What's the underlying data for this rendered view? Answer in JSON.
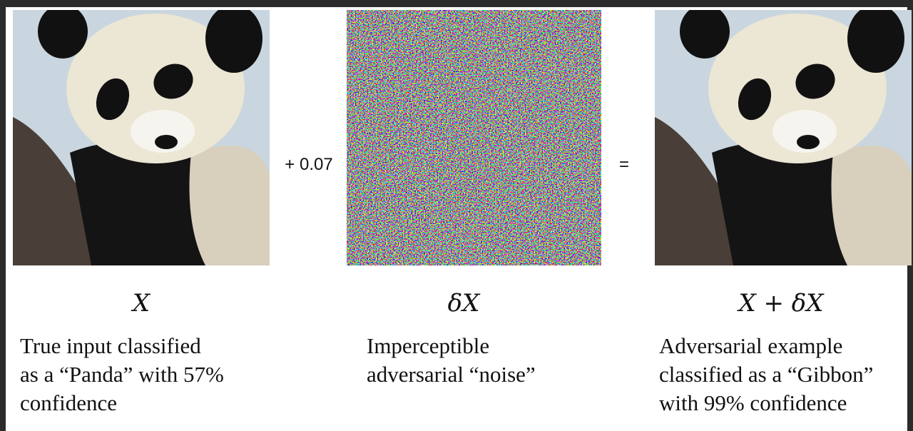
{
  "figure": {
    "operator_plus": "+ 0.07",
    "operator_equals": "=",
    "panels": [
      {
        "symbol": "X",
        "caption": [
          "True input classified",
          "as a “Panda” with 57%",
          "confidence"
        ]
      },
      {
        "symbol": "δX",
        "caption": [
          "Imperceptible",
          "adversarial “noise”"
        ]
      },
      {
        "symbol": "X + δX",
        "caption": [
          "Adversarial example",
          "classified as a “Gibbon”",
          "with 99% confidence"
        ]
      }
    ]
  }
}
